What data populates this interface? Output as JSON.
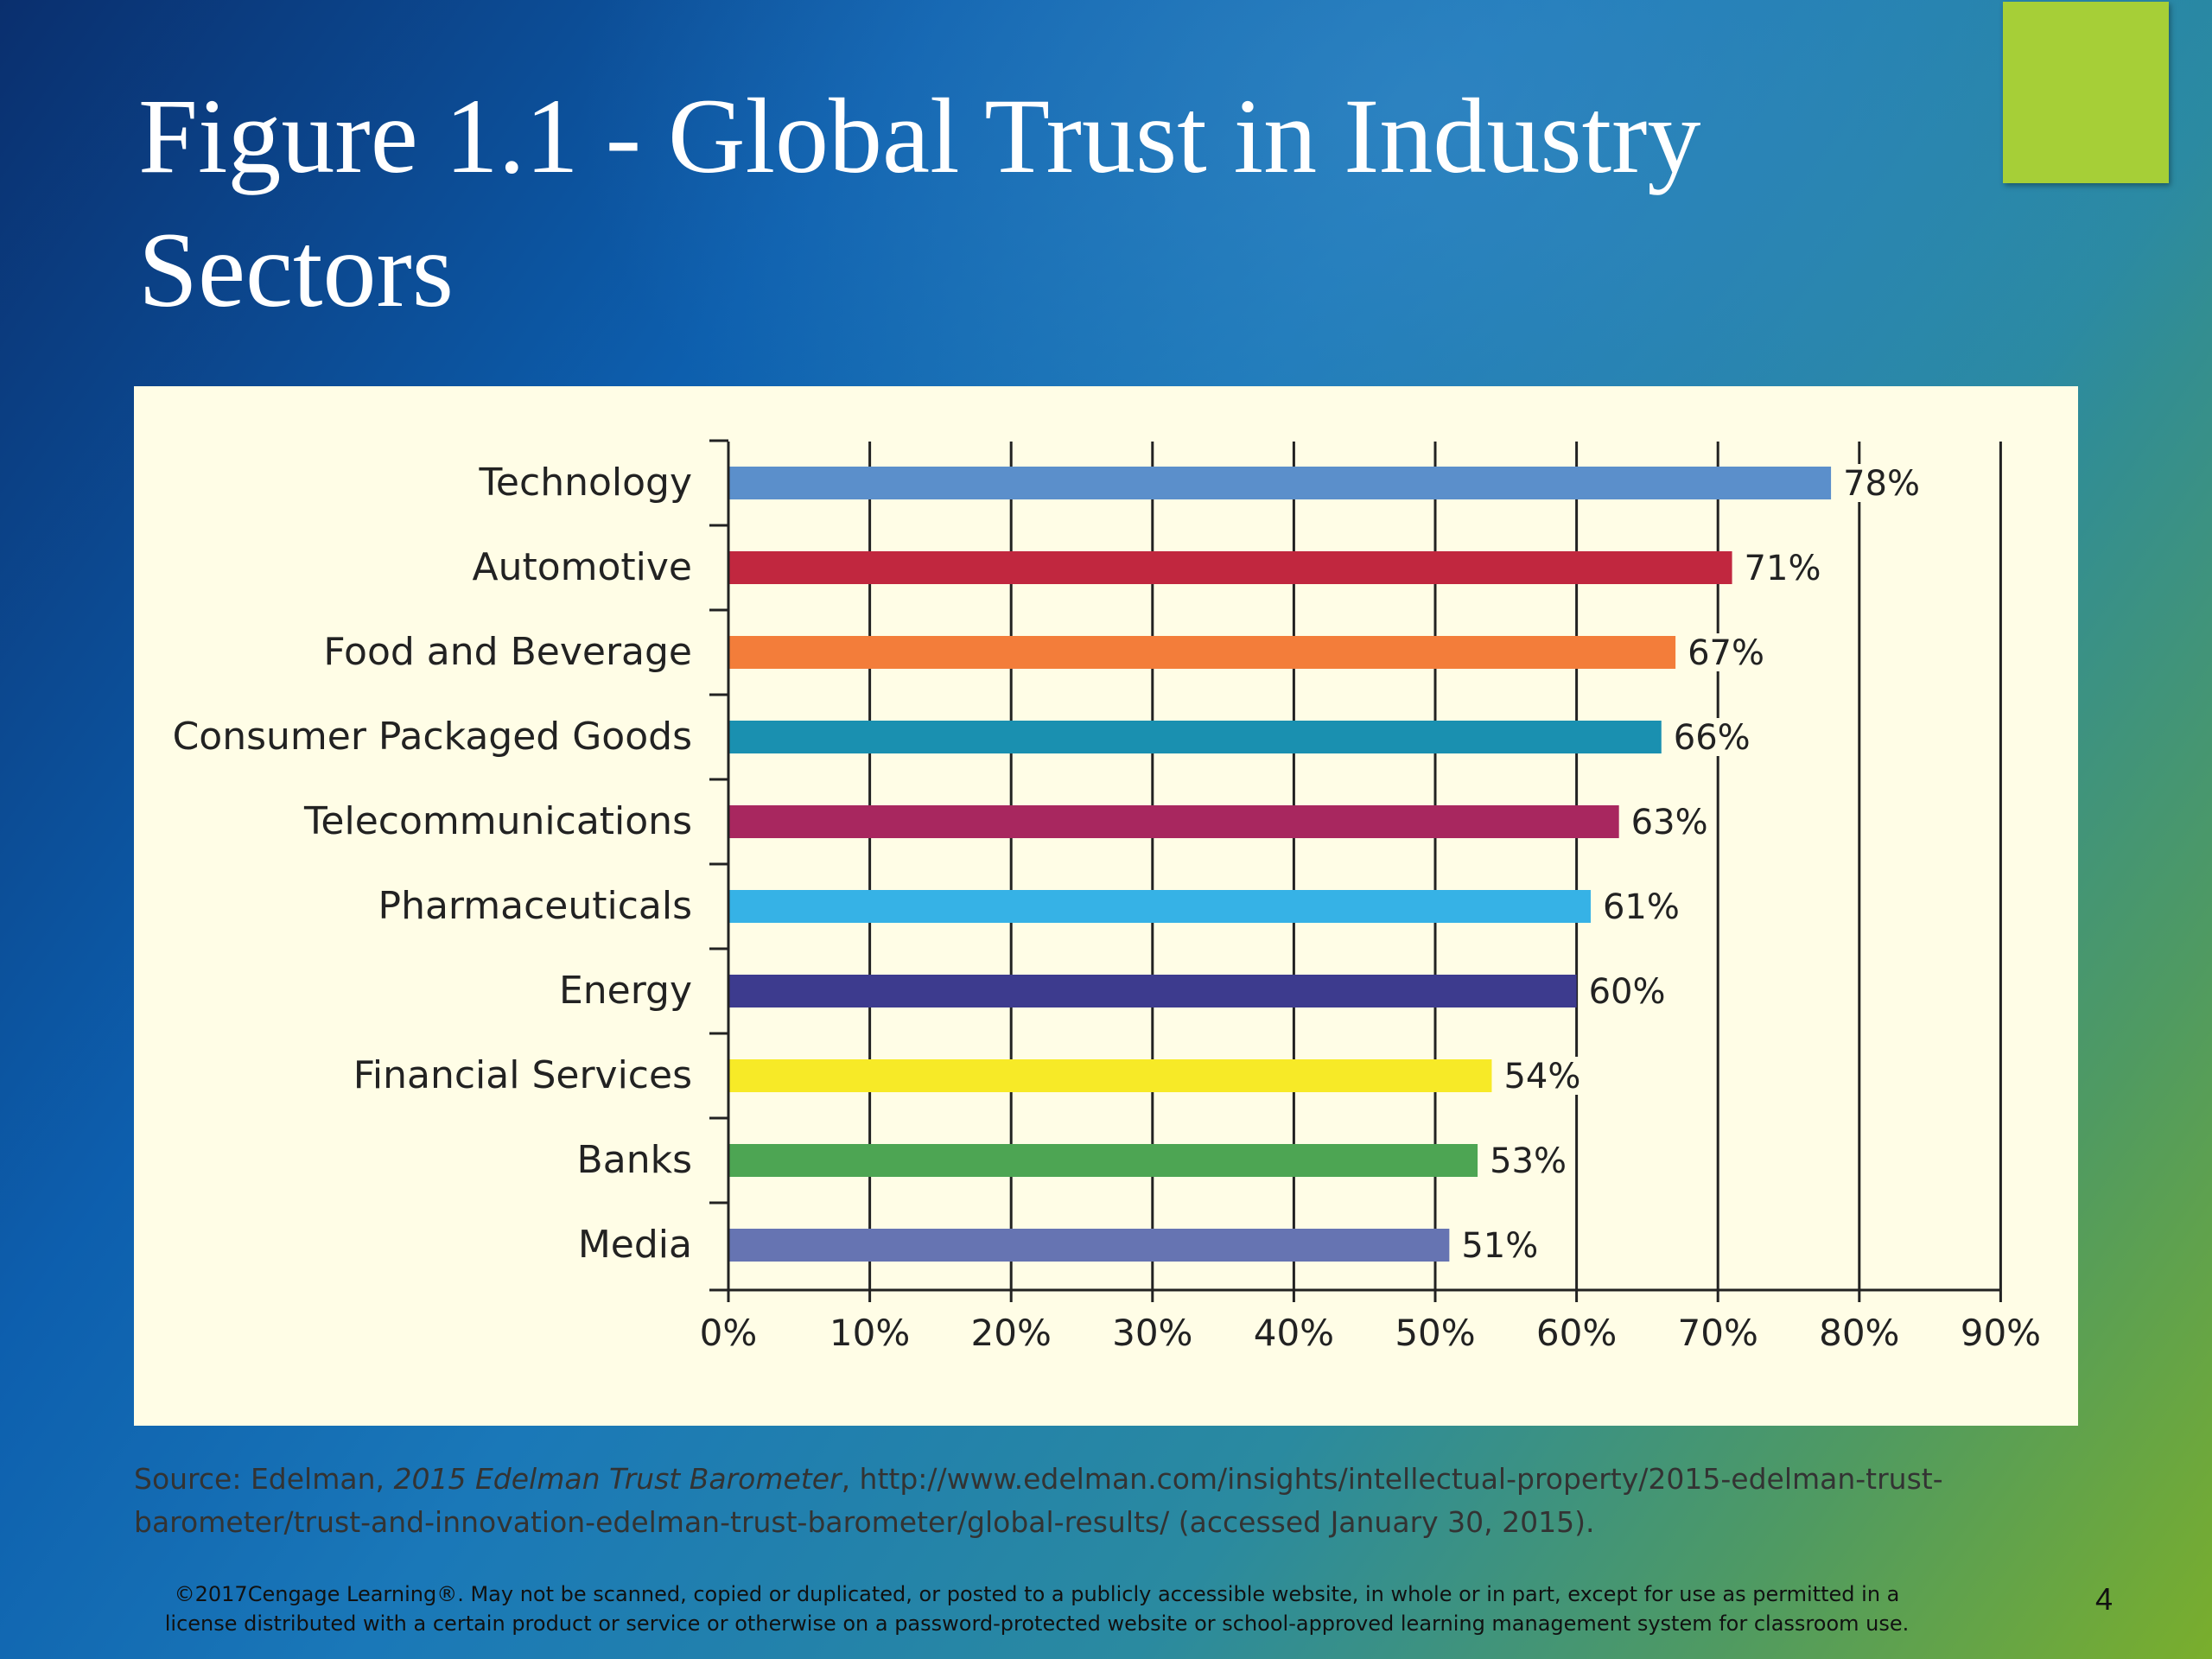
{
  "slide": {
    "title": "Figure 1.1 - Global Trust in Industry Sectors",
    "accent_color": "#a6cf37",
    "slide_number": "4",
    "copyright": "©2017Cengage Learning®. May not be scanned, copied or duplicated, or posted to a publicly accessible website, in whole or in part, except for use as permitted in a license distributed with a certain product or service or otherwise on a password-protected website or school-approved learning management system for classroom use."
  },
  "source": {
    "prefix": "Source: Edelman, ",
    "title_italic": "2015 Edelman Trust Barometer",
    "rest": ", http://www.edelman.com/insights/intellectual-property/2015-edelman-trust-barometer/trust-and-innovation-edelman-trust-barometer/global-results/ (accessed January 30, 2015)."
  },
  "chart_data": {
    "type": "bar",
    "orientation": "horizontal",
    "categories": [
      "Technology",
      "Automotive",
      "Food and Beverage",
      "Consumer Packaged Goods",
      "Telecommunications",
      "Pharmaceuticals",
      "Energy",
      "Financial Services",
      "Banks",
      "Media"
    ],
    "values": [
      78,
      71,
      67,
      66,
      63,
      61,
      60,
      54,
      53,
      51
    ],
    "value_labels": [
      "78%",
      "71%",
      "67%",
      "66%",
      "63%",
      "61%",
      "60%",
      "54%",
      "53%",
      "51%"
    ],
    "colors": [
      "#5b8fcb",
      "#c1273f",
      "#f37d3a",
      "#1a90b0",
      "#a8275f",
      "#36b2e6",
      "#3d3b8e",
      "#f7ea27",
      "#4da553",
      "#6674b2"
    ],
    "xlim": [
      0,
      90
    ],
    "x_ticks": [
      0,
      10,
      20,
      30,
      40,
      50,
      60,
      70,
      80,
      90
    ],
    "x_tick_labels": [
      "0%",
      "10%",
      "20%",
      "30%",
      "40%",
      "50%",
      "60%",
      "70%",
      "80%",
      "90%"
    ],
    "grid": true,
    "plot_background": "#fffde6"
  }
}
